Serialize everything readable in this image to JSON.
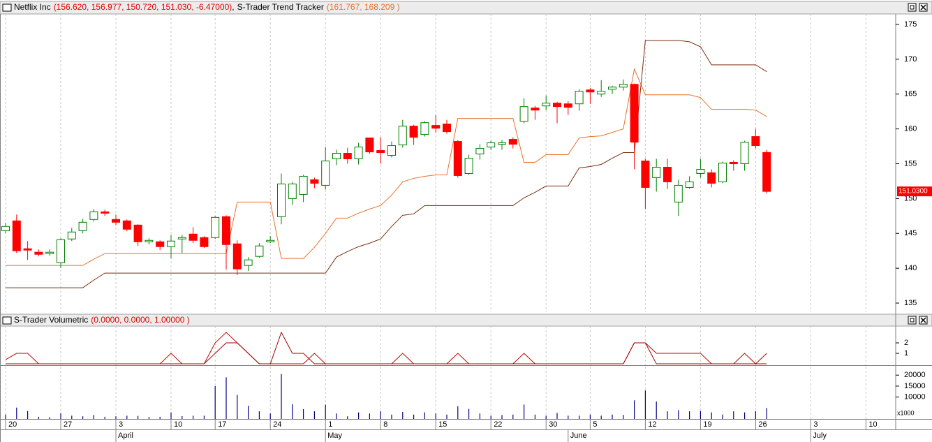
{
  "chart_data": [
    {
      "type": "candlestick",
      "title": "Netflix Inc",
      "title_values": "(156.620, 156.977, 150.720, 151.030, -6.47000)",
      "separator": ",",
      "up_color": "#008000",
      "down_color": "#ff0000",
      "title_values_color": "#e00000",
      "open": [
        145.4,
        146.8,
        142.8,
        142.3,
        142.1,
        140.8,
        144.2,
        145.4,
        147.0,
        148.1,
        147.0,
        146.8,
        146.2,
        143.8,
        143.8,
        143.1,
        144.2,
        144.9,
        144.4,
        144.4,
        147.4,
        143.5,
        140.4,
        141.7,
        143.8,
        147.4,
        150.0,
        150.6,
        152.7,
        151.9,
        155.7,
        156.5,
        155.7,
        158.7,
        156.9,
        156.2,
        157.7,
        160.4,
        159.2,
        160.5,
        160.7,
        158.2,
        153.6,
        156.4,
        157.4,
        157.8,
        158.5,
        161.1,
        163.0,
        163.3,
        163.7,
        163.6,
        163.6,
        165.6,
        165.0,
        165.7,
        166.0,
        166.4,
        155.4,
        153.0,
        154.5,
        149.5,
        151.6,
        153.6,
        153.7,
        152.4,
        155.2,
        155.0,
        158.9,
        156.62
      ],
      "high": [
        146.5,
        147.7,
        143.9,
        142.7,
        142.7,
        144.3,
        145.8,
        147.1,
        148.5,
        148.4,
        147.7,
        147.0,
        146.3,
        144.3,
        144.0,
        144.8,
        144.8,
        145.9,
        144.6,
        147.5,
        147.6,
        144.0,
        141.6,
        143.6,
        144.6,
        153.6,
        152.4,
        153.4,
        153.0,
        157.4,
        157.0,
        157.3,
        158.0,
        158.7,
        158.8,
        158.2,
        161.3,
        160.6,
        161.1,
        162.0,
        161.3,
        158.4,
        156.3,
        157.8,
        158.3,
        158.4,
        158.8,
        164.4,
        163.3,
        164.8,
        163.9,
        164.0,
        165.7,
        165.9,
        167.0,
        166.2,
        167.1,
        166.5,
        155.7,
        155.7,
        155.7,
        152.7,
        153.2,
        155.7,
        154.2,
        155.3,
        155.5,
        158.3,
        160.0,
        156.977
      ],
      "low": [
        145.0,
        142.2,
        141.2,
        141.7,
        141.8,
        140.0,
        143.9,
        145.0,
        146.7,
        147.5,
        146.2,
        145.3,
        143.2,
        143.4,
        142.6,
        141.4,
        142.2,
        143.6,
        142.9,
        144.2,
        139.8,
        139.0,
        139.6,
        141.5,
        143.6,
        146.3,
        149.1,
        149.5,
        151.5,
        151.3,
        154.8,
        155.0,
        154.9,
        156.4,
        155.0,
        155.9,
        157.3,
        157.7,
        158.9,
        159.5,
        159.3,
        153.0,
        153.4,
        155.6,
        157.0,
        157.0,
        157.2,
        160.8,
        161.3,
        162.7,
        160.8,
        162.0,
        162.6,
        163.6,
        164.6,
        165.0,
        165.5,
        154.2,
        148.5,
        151.0,
        151.4,
        147.5,
        151.4,
        153.0,
        151.6,
        152.2,
        154.0,
        154.0,
        157.2,
        150.72
      ],
      "close": [
        146.0,
        142.5,
        142.6,
        142.0,
        142.3,
        144.1,
        145.2,
        146.6,
        148.1,
        147.9,
        146.6,
        145.6,
        143.8,
        144.0,
        143.1,
        143.9,
        144.4,
        144.0,
        143.1,
        147.3,
        143.4,
        139.9,
        141.2,
        143.2,
        144.0,
        152.1,
        152.1,
        153.2,
        152.2,
        155.4,
        156.5,
        155.7,
        157.4,
        156.7,
        156.6,
        157.6,
        160.4,
        158.8,
        160.9,
        160.1,
        159.6,
        153.3,
        155.8,
        157.2,
        158.0,
        158.0,
        157.8,
        163.2,
        162.7,
        163.7,
        163.2,
        163.1,
        165.4,
        165.3,
        165.4,
        166.0,
        166.4,
        158.1,
        151.6,
        154.5,
        152.4,
        151.9,
        152.4,
        154.2,
        152.2,
        155.1,
        155.0,
        158.1,
        157.6,
        151.03
      ],
      "overlay": {
        "name": "S-Trader Trend Tracker",
        "values_label": "(161.767, 168.209 )",
        "values_label_color": "#e8722a",
        "series": [
          {
            "color": "#e8722a",
            "values": [
              140.4,
              140.4,
              140.4,
              140.4,
              140.4,
              140.4,
              140.4,
              140.4,
              141.3,
              142.1,
              142.1,
              142.1,
              142.1,
              142.1,
              142.1,
              142.1,
              142.1,
              142.1,
              142.1,
              142.1,
              142.1,
              149.5,
              149.5,
              149.5,
              149.5,
              141.4,
              141.4,
              141.4,
              143.0,
              145.0,
              147.2,
              147.2,
              147.9,
              148.5,
              149.0,
              150.5,
              152.4,
              152.9,
              153.2,
              153.4,
              153.4,
              161.5,
              161.5,
              161.5,
              161.5,
              161.5,
              161.5,
              155.2,
              155.2,
              156.3,
              156.3,
              156.3,
              158.7,
              158.9,
              159.0,
              159.5,
              160.0,
              168.6,
              164.9,
              164.9,
              164.9,
              164.9,
              164.9,
              164.5,
              162.8,
              162.8,
              162.8,
              162.8,
              162.7,
              161.767
            ]
          },
          {
            "color": "#7a2e0e",
            "values": [
              137.2,
              137.2,
              137.2,
              137.2,
              137.2,
              137.2,
              137.2,
              137.2,
              138.3,
              139.3,
              139.3,
              139.3,
              139.3,
              139.3,
              139.3,
              139.3,
              139.3,
              139.3,
              139.3,
              139.3,
              139.3,
              139.3,
              139.3,
              139.3,
              139.3,
              139.3,
              139.3,
              139.3,
              139.3,
              139.3,
              141.6,
              142.4,
              143.1,
              143.6,
              144.2,
              146.0,
              147.6,
              147.8,
              149.0,
              149.0,
              149.0,
              149.0,
              149.0,
              149.0,
              149.0,
              149.0,
              149.0,
              150.1,
              150.9,
              151.8,
              151.8,
              151.8,
              154.4,
              154.6,
              154.9,
              155.8,
              156.6,
              156.6,
              172.7,
              172.7,
              172.7,
              172.7,
              172.5,
              171.8,
              169.2,
              169.2,
              169.2,
              169.2,
              169.2,
              168.209
            ]
          }
        ]
      },
      "last_price": {
        "value": 151.03,
        "label": "151.0300"
      },
      "ylim": [
        133.7,
        176.5
      ],
      "yticks": [
        135,
        140,
        145,
        150,
        155,
        160,
        165,
        170,
        175
      ],
      "grid": true
    },
    {
      "type": "line",
      "title": "S-Trader Volumetric",
      "title_values": "(0.0000, 0.0000, 1.00000 )",
      "title_values_color": "#e00000",
      "series": [
        {
          "color": "#c00000",
          "values": [
            0.4,
            1,
            1,
            0,
            0,
            0,
            0,
            0,
            0,
            0,
            0,
            0,
            0,
            0,
            0,
            1,
            0,
            0,
            0,
            2,
            3,
            2,
            1,
            0,
            0,
            0,
            0,
            0,
            1,
            0,
            0,
            0,
            0,
            0,
            0,
            0,
            1,
            0,
            0,
            0,
            0,
            1,
            0,
            0,
            0,
            0,
            0,
            1,
            0,
            0,
            0,
            0,
            0,
            0,
            0,
            0,
            0,
            2,
            2,
            1,
            1,
            1,
            1,
            1,
            0,
            0,
            0,
            1,
            0,
            1
          ]
        },
        {
          "color": "#a00000",
          "values": [
            0,
            0,
            0,
            0,
            0,
            0,
            0,
            0,
            0,
            0,
            0,
            0,
            0,
            0,
            0,
            0,
            0,
            0,
            0,
            1,
            2,
            2,
            1,
            0,
            0,
            3,
            1,
            1,
            0,
            0,
            0,
            0,
            0,
            0,
            0,
            0,
            0,
            0,
            0,
            0,
            0,
            0,
            0,
            0,
            0,
            0,
            0,
            0,
            0,
            0,
            0,
            0,
            0,
            0,
            0,
            0,
            0,
            2,
            2,
            0,
            0,
            0,
            0,
            0,
            0,
            0,
            0,
            0,
            0,
            0
          ]
        }
      ],
      "ylim": [
        -0.13,
        3.6
      ],
      "yticks": [
        1,
        2
      ],
      "grid": true
    },
    {
      "type": "bar",
      "color": "#00008b",
      "unit_label": "x1000",
      "values": [
        2000,
        5200,
        3600,
        1000,
        800,
        2600,
        1500,
        1200,
        1800,
        1000,
        1200,
        1500,
        1400,
        900,
        1000,
        3000,
        1300,
        1500,
        1500,
        15000,
        19000,
        11000,
        6000,
        3500,
        2500,
        20500,
        6700,
        4500,
        3500,
        6500,
        2500,
        1200,
        3000,
        2500,
        3500,
        2000,
        3200,
        2000,
        3000,
        2500,
        2000,
        5800,
        4600,
        2500,
        1500,
        1800,
        2000,
        6600,
        2000,
        1500,
        2800,
        1500,
        1500,
        2000,
        1500,
        2000,
        1800,
        8500,
        13000,
        8000,
        3500,
        4000,
        3500,
        3600,
        3000,
        2000,
        3500,
        3000,
        3500,
        5000,
        null,
        null,
        null,
        null,
        null,
        null,
        null,
        null,
        null
      ],
      "categories": [
        "20",
        null,
        null,
        null,
        null,
        "27",
        null,
        null,
        null,
        null,
        "3",
        null,
        null,
        null,
        null,
        "10",
        null,
        null,
        null,
        "17",
        null,
        null,
        null,
        null,
        "24",
        null,
        null,
        null,
        null,
        "1",
        null,
        null,
        null,
        null,
        "8",
        null,
        null,
        null,
        null,
        "15",
        null,
        null,
        null,
        null,
        "22",
        null,
        null,
        null,
        null,
        "30",
        null,
        null,
        null,
        "5",
        null,
        null,
        null,
        null,
        "12",
        null,
        null,
        null,
        null,
        "19",
        null,
        null,
        null,
        null,
        "26",
        null,
        null,
        null,
        null,
        "3",
        null,
        null,
        null,
        null,
        "10"
      ],
      "month_labels": [
        null,
        null,
        null,
        null,
        null,
        null,
        null,
        null,
        null,
        null,
        "April",
        null,
        null,
        null,
        null,
        null,
        null,
        null,
        null,
        null,
        null,
        null,
        null,
        null,
        null,
        null,
        null,
        null,
        null,
        "May",
        null,
        null,
        null,
        null,
        null,
        null,
        null,
        null,
        null,
        null,
        null,
        null,
        null,
        null,
        null,
        null,
        null,
        null,
        null,
        null,
        null,
        "June",
        null,
        null,
        null,
        null,
        null,
        null,
        null,
        null,
        null,
        null,
        null,
        null,
        null,
        null,
        null,
        null,
        null,
        null,
        null,
        null,
        null,
        "July",
        null,
        null,
        null,
        null,
        null
      ],
      "ylim": [
        0,
        23900
      ],
      "yticks": [
        20000,
        15000,
        10000
      ],
      "grid": true
    }
  ]
}
